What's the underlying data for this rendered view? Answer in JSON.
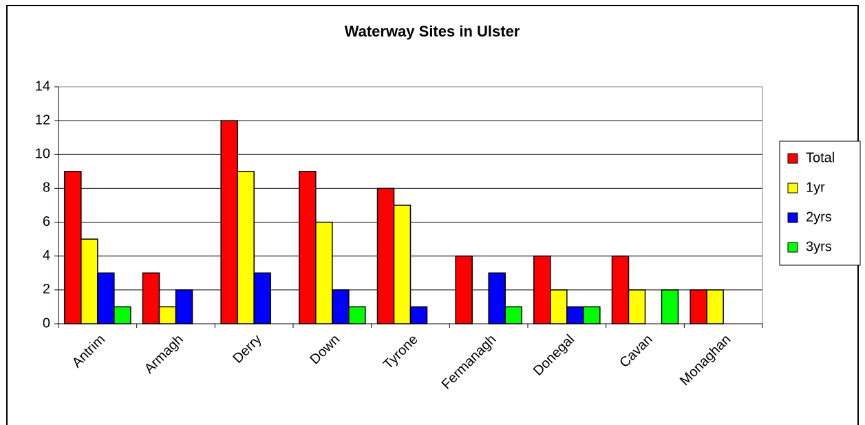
{
  "chart_data": {
    "type": "bar",
    "title": "Waterway Sites in Ulster",
    "categories": [
      "Antrim",
      "Armagh",
      "Derry",
      "Down",
      "Tyrone",
      "Fermanagh",
      "Donegal",
      "Cavan",
      "Monaghan"
    ],
    "series": [
      {
        "name": "Total",
        "color": "#ff0000",
        "values": [
          9,
          3,
          12,
          9,
          8,
          4,
          4,
          4,
          2
        ]
      },
      {
        "name": "1yr",
        "color": "#ffff00",
        "values": [
          5,
          1,
          9,
          6,
          7,
          0,
          2,
          2,
          2
        ]
      },
      {
        "name": "2yrs",
        "color": "#0000ff",
        "values": [
          3,
          2,
          3,
          2,
          1,
          3,
          1,
          0,
          0
        ]
      },
      {
        "name": "3yrs",
        "color": "#00ff00",
        "values": [
          1,
          0,
          0,
          1,
          0,
          1,
          1,
          2,
          0
        ]
      }
    ],
    "ylim": [
      0,
      14
    ],
    "yticks": [
      0,
      2,
      4,
      6,
      8,
      10,
      12,
      14
    ],
    "grid": true,
    "legend": "right"
  }
}
